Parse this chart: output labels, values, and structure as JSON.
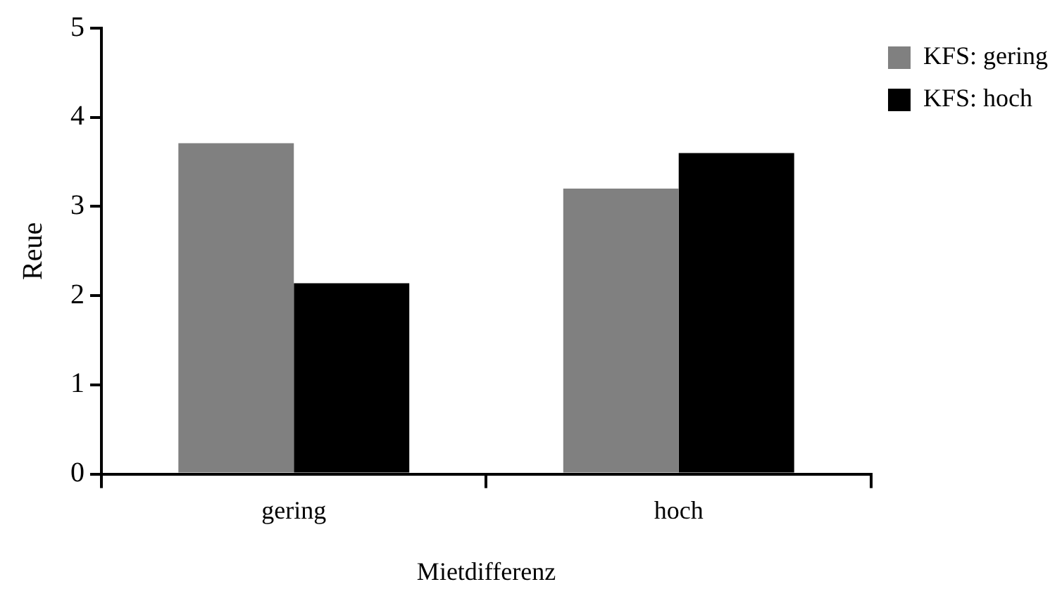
{
  "chart_data": {
    "type": "bar",
    "xlabel": "Mietdifferenz",
    "ylabel": "Reue",
    "categories": [
      "gering",
      "hoch"
    ],
    "series": [
      {
        "name": "KFS: gering",
        "color": "#808080",
        "values": [
          3.71,
          3.2
        ]
      },
      {
        "name": "KFS: hoch",
        "color": "#000000",
        "values": [
          2.14,
          3.6
        ]
      }
    ],
    "ylim": [
      0,
      5
    ],
    "yticks": [
      0,
      1,
      2,
      3,
      4,
      5
    ],
    "grid": false,
    "legend": "top right"
  }
}
